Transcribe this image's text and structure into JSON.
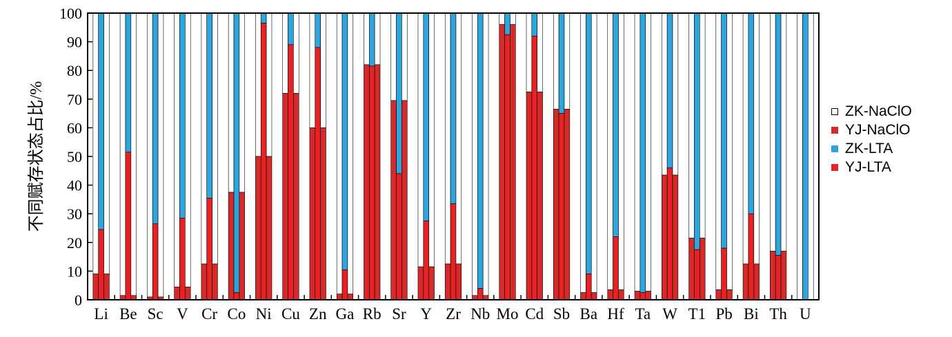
{
  "chart_data": {
    "type": "bar",
    "ylabel": "不同赋存状态占比/%",
    "ylim": [
      0,
      100
    ],
    "yticks": [
      "0",
      "10",
      "20",
      "30",
      "40",
      "50",
      "60",
      "70",
      "80",
      "90",
      "100"
    ],
    "categories": [
      "Li",
      "Be",
      "Sc",
      "V",
      "Cr",
      "Co",
      "Ni",
      "Cu",
      "Zn",
      "Ga",
      "Rb",
      "Sr",
      "Y",
      "Zr",
      "Nb",
      "Mo",
      "Cd",
      "Sb",
      "Ba",
      "Hf",
      "Ta",
      "W",
      "T1",
      "Pb",
      "Bi",
      "Th",
      "U"
    ],
    "legend_position": "right",
    "series": [
      {
        "name": "ZK-NaClO",
        "color": "#ffffff",
        "values": [
          100,
          100,
          100,
          100,
          100,
          100,
          100,
          100,
          100,
          100,
          100,
          100,
          100,
          100,
          100,
          100,
          100,
          100,
          100,
          100,
          100,
          100,
          100,
          100,
          100,
          100,
          100
        ]
      },
      {
        "name": "YJ-NaClO",
        "color": "#d42a29",
        "values": [
          9,
          1.5,
          1,
          4.5,
          12.5,
          37.5,
          50,
          72,
          60,
          2,
          82,
          69.5,
          11.5,
          12.5,
          1.5,
          96,
          72.5,
          66.5,
          2.5,
          3.5,
          3,
          43.5,
          21.5,
          3.5,
          12.5,
          17,
          0
        ]
      },
      {
        "name": "ZK-LTA",
        "color": "#2ea6dd",
        "values": [
          100,
          100,
          100,
          100,
          100,
          100,
          100,
          100,
          100,
          100,
          100,
          100,
          100,
          100,
          100,
          100,
          100,
          100,
          100,
          100,
          100,
          100,
          100,
          100,
          100,
          100,
          100
        ]
      },
      {
        "name": "YJ-LTA",
        "color": "#e82222",
        "values": [
          24.5,
          51.5,
          26.5,
          28.5,
          35.5,
          2.5,
          96.5,
          89,
          88,
          10.5,
          81.5,
          44,
          27.5,
          33.5,
          4,
          92.5,
          92,
          65,
          9,
          22,
          2.5,
          46,
          17.5,
          18,
          30,
          15.5,
          0
        ]
      }
    ]
  }
}
